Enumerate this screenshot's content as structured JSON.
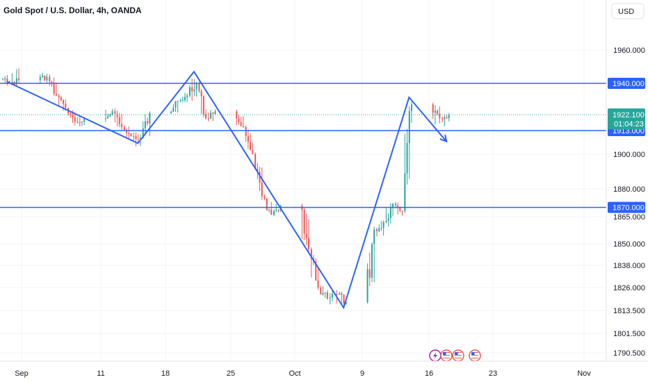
{
  "chart_data": {
    "type": "candlestick",
    "title": "Gold Spot / U.S. Dollar, 4h, OANDA",
    "currency": "USD",
    "x_ticks": [
      "Sep",
      "11",
      "18",
      "25",
      "Oct",
      "9",
      "16",
      "23",
      "Nov"
    ],
    "y_ticks": [
      "1960.000",
      "1900.000",
      "1880.000",
      "1865.000",
      "1850.000",
      "1838.000",
      "1826.000",
      "1813.500",
      "1801.500",
      "1790.500"
    ],
    "last_price": "1922.100",
    "countdown": "01:04:23",
    "levels": [
      {
        "value": 1940,
        "label": "1940.000"
      },
      {
        "value": 1913,
        "label": "1913.000"
      },
      {
        "value": 1870,
        "label": "1870.000"
      }
    ],
    "zigzag": [
      {
        "date": "2023-08-31",
        "price": 1941
      },
      {
        "date": "2023-09-14",
        "price": 1906
      },
      {
        "date": "2023-09-20",
        "price": 1947
      },
      {
        "date": "2023-10-06",
        "price": 1815
      },
      {
        "date": "2023-10-13",
        "price": 1932
      },
      {
        "date": "2023-10-17",
        "price": 1907
      }
    ],
    "candles": [
      [
        "2023-08-31",
        1942,
        1946,
        1938,
        1941
      ],
      [
        "2023-09-01",
        1940,
        1952,
        1937,
        1942
      ],
      [
        "2023-09-04",
        1942,
        1948,
        1938,
        1944
      ],
      [
        "2023-09-05",
        1944,
        1946,
        1928,
        1933
      ],
      [
        "2023-09-06",
        1933,
        1936,
        1922,
        1926
      ],
      [
        "2023-09-07",
        1926,
        1926,
        1915,
        1918
      ],
      [
        "2023-09-08",
        1918,
        1923,
        1914,
        1920
      ],
      [
        "2023-09-11",
        1920,
        1928,
        1917,
        1924
      ],
      [
        "2023-09-12",
        1924,
        1927,
        1912,
        1915
      ],
      [
        "2023-09-13",
        1915,
        1917,
        1907,
        1910
      ],
      [
        "2023-09-14",
        1910,
        1913,
        1902,
        1909
      ],
      [
        "2023-09-15",
        1909,
        1925,
        1907,
        1923
      ],
      [
        "2023-09-18",
        1923,
        1932,
        1920,
        1930
      ],
      [
        "2023-09-19",
        1930,
        1936,
        1927,
        1933
      ],
      [
        "2023-09-20",
        1933,
        1947,
        1927,
        1940
      ],
      [
        "2023-09-21",
        1940,
        1941,
        1917,
        1920
      ],
      [
        "2023-09-22",
        1920,
        1927,
        1916,
        1924
      ],
      [
        "2023-09-25",
        1924,
        1926,
        1913,
        1915
      ],
      [
        "2023-09-26",
        1915,
        1916,
        1898,
        1900
      ],
      [
        "2023-09-27",
        1900,
        1901,
        1873,
        1876
      ],
      [
        "2023-09-28",
        1876,
        1880,
        1864,
        1866
      ],
      [
        "2023-09-29",
        1866,
        1874,
        1860,
        1871
      ],
      [
        "2023-10-02",
        1871,
        1872,
        1844,
        1847
      ],
      [
        "2023-10-03",
        1847,
        1848,
        1824,
        1826
      ],
      [
        "2023-10-04",
        1826,
        1829,
        1816,
        1820
      ],
      [
        "2023-10-05",
        1820,
        1826,
        1815,
        1822
      ],
      [
        "2023-10-06",
        1822,
        1828,
        1811,
        1818
      ],
      [
        "2023-10-09",
        1818,
        1862,
        1816,
        1858
      ],
      [
        "2023-10-10",
        1858,
        1865,
        1852,
        1862
      ],
      [
        "2023-10-11",
        1862,
        1875,
        1858,
        1872
      ],
      [
        "2023-10-12",
        1872,
        1874,
        1862,
        1868
      ],
      [
        "2023-10-13",
        1868,
        1932,
        1866,
        1928
      ],
      [
        "2023-10-16",
        1928,
        1932,
        1914,
        1920
      ],
      [
        "2023-10-17",
        1920,
        1924,
        1912,
        1922
      ]
    ]
  }
}
